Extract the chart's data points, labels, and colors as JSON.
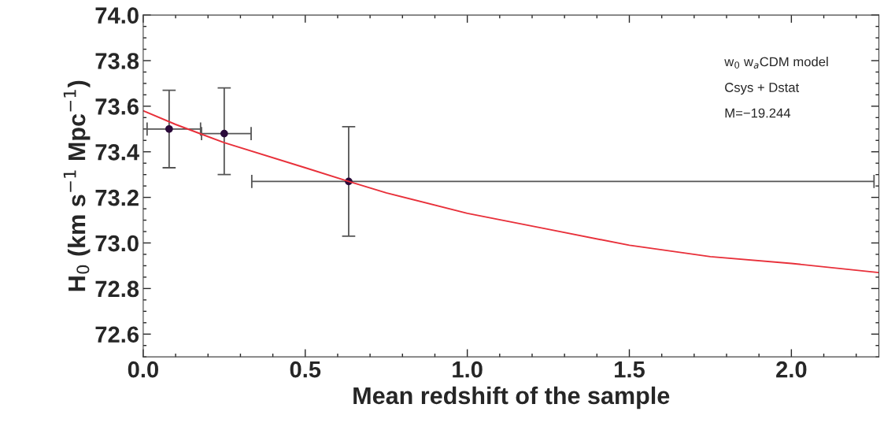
{
  "chart_data": {
    "type": "scatter",
    "xlabel": "Mean redshift of the sample",
    "ylabel": "H$_{0}$ (km s$^{−1}$ Mpc$^{−1}$)",
    "xlim": [
      0,
      2.27
    ],
    "ylim": [
      72.5,
      74.0
    ],
    "xticks": [
      {
        "value": 0,
        "label": "0.0"
      },
      0.5,
      {
        "value": 1,
        "label": "1.0"
      },
      1.5,
      {
        "value": 2,
        "label": "2.0"
      }
    ],
    "yticks": [
      72.6,
      72.8,
      {
        "value": 73,
        "label": "73.0"
      },
      73.2,
      73.4,
      73.6,
      73.8,
      {
        "value": 74,
        "label": "74.0"
      }
    ],
    "grid": false,
    "annotations": [
      "w$_{0}$ w$_{a}$CDM model",
      "Csys + Dstat",
      "M=−19.244"
    ],
    "series": [
      {
        "marker": "circle",
        "color": "#2a0a3a",
        "x": [
          0.08,
          0.25,
          0.634
        ],
        "values": [
          73.5,
          73.48,
          73.27
        ],
        "errors": [
          [
            73.33,
            73.67
          ],
          [
            73.3,
            73.68
          ],
          [
            73.03,
            73.51
          ]
        ],
        "xerrors": [
          [
            0.012,
            0.177
          ],
          [
            0.18,
            0.333
          ],
          [
            0.335,
            2.255
          ]
        ]
      },
      {
        "type": "line",
        "marker": "none",
        "color": "#e8303a",
        "x": [
          0,
          0.1,
          0.25,
          0.5,
          0.634,
          0.75,
          1.0,
          1.25,
          1.5,
          1.75,
          2.0,
          2.27
        ],
        "values": [
          73.58,
          73.52,
          73.44,
          73.33,
          73.27,
          73.22,
          73.13,
          73.06,
          72.99,
          72.94,
          72.91,
          72.87
        ]
      }
    ]
  }
}
